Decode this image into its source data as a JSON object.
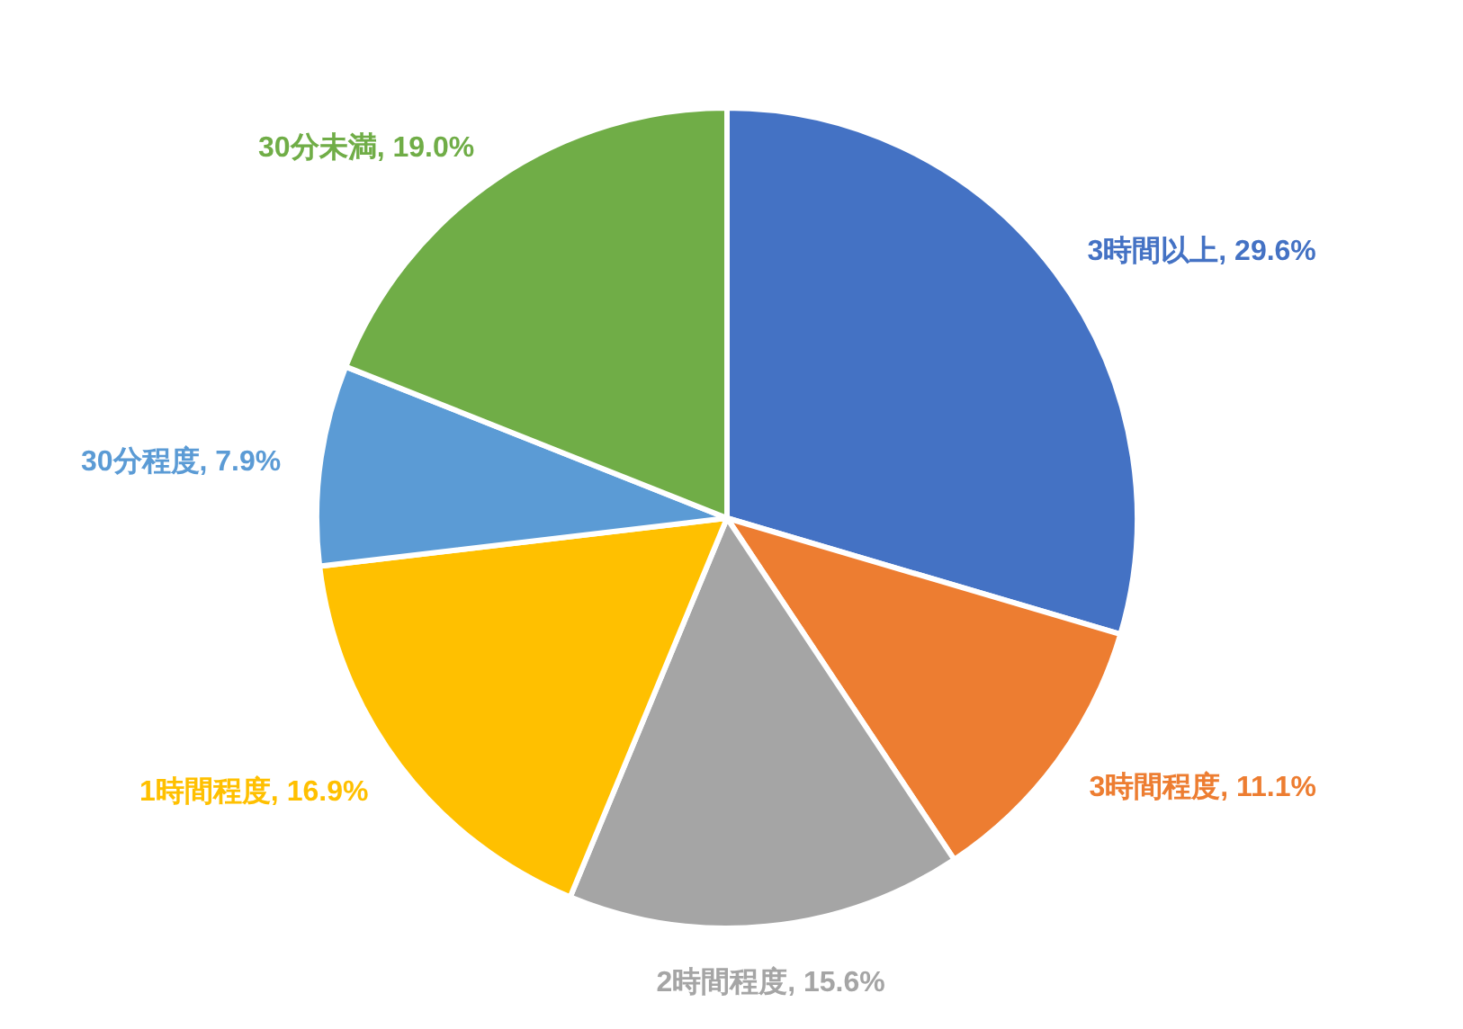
{
  "chart_data": {
    "type": "pie",
    "categories": [
      "3時間以上",
      "3時間程度",
      "2時間程度",
      "1時間程度",
      "30分程度",
      "30分未満"
    ],
    "values": [
      29.6,
      11.1,
      15.6,
      16.9,
      7.9,
      19.0
    ],
    "value_labels": [
      "29.6%",
      "11.1%",
      "15.6%",
      "16.9%",
      "7.9%",
      "19.0%"
    ],
    "colors": [
      "#4472c4",
      "#ed7d31",
      "#a5a5a5",
      "#ffc000",
      "#5b9bd5",
      "#70ad47"
    ]
  }
}
